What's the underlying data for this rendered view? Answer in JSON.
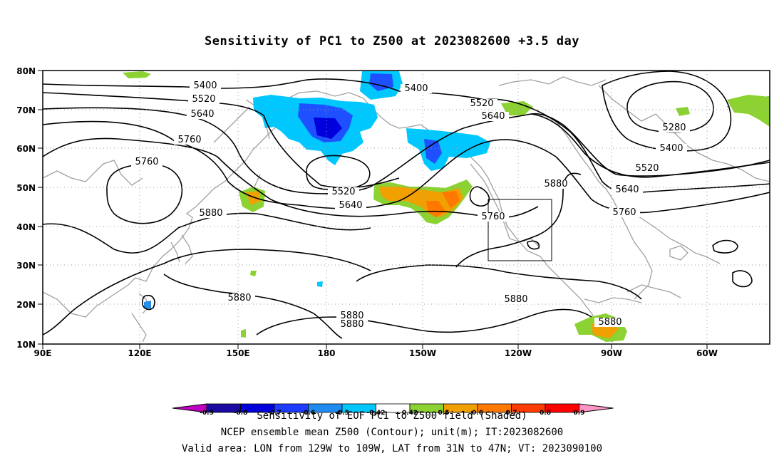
{
  "title": "Sensitivity of PC1 to Z500 at 2023082600 +3.5 day",
  "lat_ticks": [
    "80N",
    "70N",
    "60N",
    "50N",
    "40N",
    "30N",
    "20N",
    "10N"
  ],
  "lon_ticks": [
    "90E",
    "120E",
    "150E",
    "180",
    "150W",
    "120W",
    "90W",
    "60W"
  ],
  "contour_labels": [
    "5400",
    "5520",
    "5640",
    "5760",
    "5760",
    "5880",
    "5880",
    "5880",
    "5880",
    "5880",
    "5400",
    "5520",
    "5640",
    "5760",
    "5520",
    "5640",
    "5280",
    "5400",
    "5520",
    "5640",
    "5760",
    "5880",
    "5880"
  ],
  "colorbar": {
    "labels": [
      "-0.9",
      "-0.8",
      "-0.7",
      "-0.6",
      "-0.5",
      "-0.42",
      "0.42",
      "0.5",
      "0.6",
      "0.7",
      "0.8",
      "0.9"
    ],
    "colors": [
      "#1a0aa0",
      "#0000dd",
      "#1e3cff",
      "#1e8cf0",
      "#00c8ff",
      "#ffffff",
      "#8cd232",
      "#f0a000",
      "#ff7800",
      "#ff3c00",
      "#ff0000"
    ],
    "end_low_color": "#c000c0",
    "end_high_color": "#ff96c8"
  },
  "captions": {
    "line1": "Sensitivity of EOF PC1 to Z500 field (Shaded)",
    "line2": "NCEP ensemble mean Z500 (Contour); unit(m); IT:2023082600",
    "line3": "Valid area: LON from 129W to 109W, LAT from 31N to 47N; VT: 2023090100"
  },
  "colors": {
    "negative": "#00c8ff",
    "negative_strong": "#1e50ff",
    "positive_weak": "#8cd232",
    "positive": "#f0a000",
    "positive_strong": "#ff5000",
    "coast": "#a0a0a0"
  }
}
